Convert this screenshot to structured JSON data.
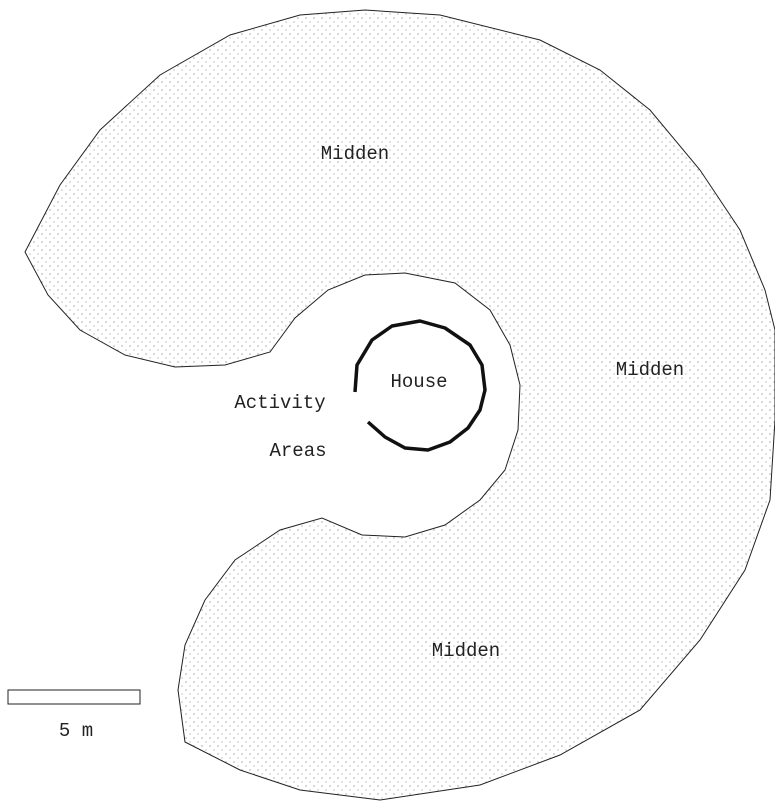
{
  "labels": {
    "midden_top": "Midden",
    "midden_right": "Midden",
    "midden_bottom": "Midden",
    "house": "House",
    "activity_line1": "Activity",
    "activity_line2": "Areas",
    "scale": "5 m"
  }
}
